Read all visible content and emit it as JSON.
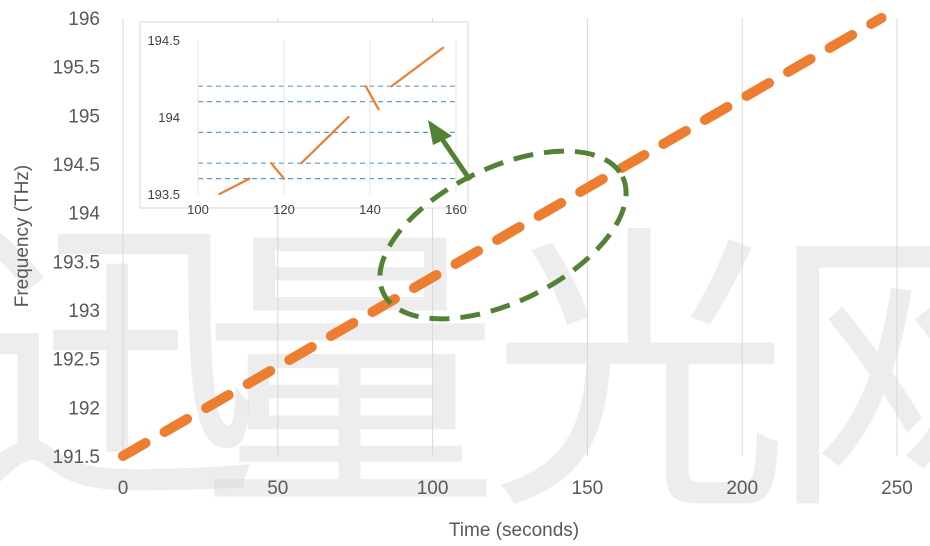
{
  "chart_data": [
    {
      "type": "line",
      "title": "",
      "xlabel": "Time (seconds)",
      "ylabel": "Frequency (THz)",
      "xlim": [
        0,
        250
      ],
      "ylim": [
        191.5,
        196
      ],
      "xticks": [
        0,
        50,
        100,
        150,
        200,
        250
      ],
      "yticks": [
        191.5,
        192,
        192.5,
        193,
        193.5,
        194,
        194.5,
        195,
        195.5,
        196
      ],
      "xtick_labels": [
        "0",
        "50",
        "100",
        "150",
        "200",
        "250"
      ],
      "ytick_labels": [
        "191.5",
        "192",
        "192.5",
        "193",
        "193.5",
        "194",
        "194.5",
        "195",
        "195.5",
        "196"
      ],
      "grid": "vertical",
      "series_color": "#ed7d31",
      "series": [
        {
          "x": [
            0,
            245
          ],
          "y": [
            191.5,
            196.0
          ]
        }
      ],
      "annotations": {
        "ellipse": {
          "center_x": 82,
          "center_y": 193.5,
          "color": "#548235",
          "style": "dashed"
        },
        "arrow_color": "#548235"
      }
    },
    {
      "type": "line",
      "title": "",
      "xlim": [
        100,
        160
      ],
      "ylim": [
        193.5,
        194.5
      ],
      "xticks": [
        100,
        120,
        140,
        160
      ],
      "yticks": [
        193.5,
        194,
        194.5
      ],
      "xtick_labels": [
        "100",
        "120",
        "140",
        "160"
      ],
      "ytick_labels": [
        "193.5",
        "194",
        "194.5"
      ],
      "dashed_levels": [
        193.6,
        193.7,
        193.9,
        194.1,
        194.2
      ],
      "dashed_level_color": "#5b9bd5",
      "series_color": "#ed7d31",
      "segments": [
        {
          "x": [
            105,
            112
          ],
          "y": [
            193.5,
            193.6
          ]
        },
        {
          "x": [
            117,
            120
          ],
          "y": [
            193.7,
            193.6
          ]
        },
        {
          "x": [
            124,
            135
          ],
          "y": [
            193.7,
            194.0
          ]
        },
        {
          "x": [
            139,
            142
          ],
          "y": [
            194.2,
            194.05
          ]
        },
        {
          "x": [
            145,
            157
          ],
          "y": [
            194.2,
            194.45
          ]
        }
      ]
    }
  ],
  "watermark": {
    "glyphs": [
      "迅",
      "量",
      "光",
      "网"
    ],
    "color": "#d8d8d8"
  }
}
